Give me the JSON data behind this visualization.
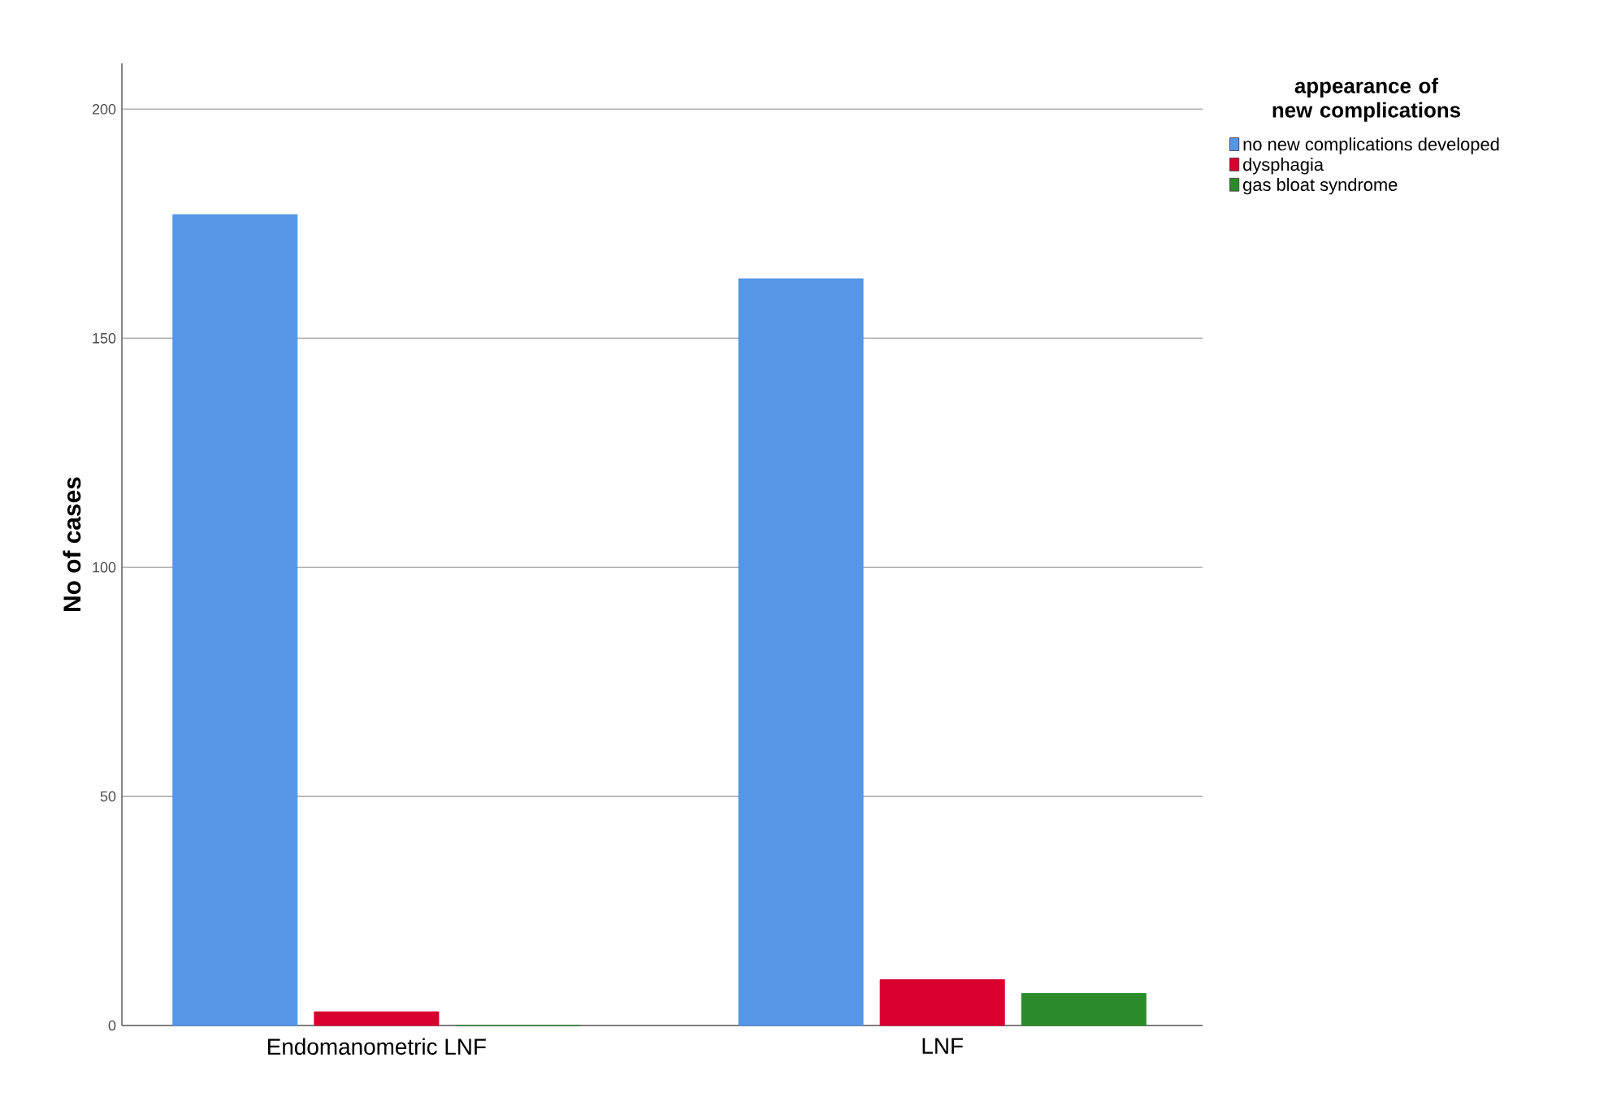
{
  "chart_data": {
    "type": "bar",
    "ylabel": "No of cases",
    "legend_title": "appearance of new complications",
    "categories": [
      "Endomanometric LNF",
      "LNF"
    ],
    "series": [
      {
        "name": "no new complications developed",
        "color": "#5596e6",
        "values": [
          177,
          163
        ]
      },
      {
        "name": "dysphagia",
        "color": "#d8002d",
        "values": [
          3,
          10
        ]
      },
      {
        "name": "gas bloat syndrome",
        "color": "#2b8a2b",
        "values": [
          0,
          7
        ]
      }
    ],
    "ylim": [
      0,
      210
    ],
    "yticks": [
      0,
      50,
      100,
      150,
      200
    ],
    "grid": "y",
    "legend": "right"
  }
}
